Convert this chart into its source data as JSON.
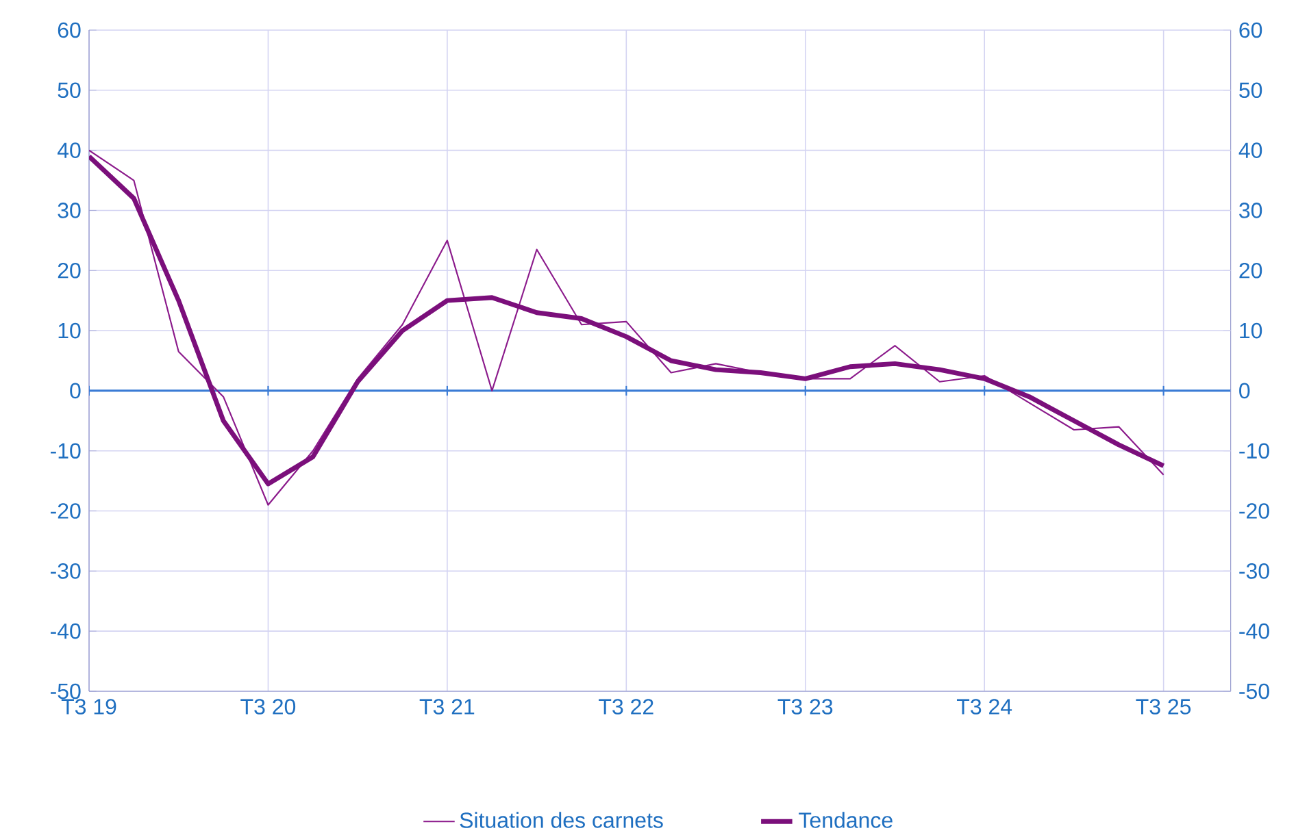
{
  "chart_data": {
    "type": "line",
    "categories": [
      "T3 19",
      null,
      null,
      null,
      "T3 20",
      null,
      null,
      null,
      "T3 21",
      null,
      null,
      null,
      "T3 22",
      null,
      null,
      null,
      "T3 23",
      null,
      null,
      null,
      "T3 24",
      null,
      null,
      null,
      "T3 25"
    ],
    "series": [
      {
        "name": "Situation des carnets",
        "color": "#8b1a8b",
        "values": [
          40,
          35,
          6.5,
          -1,
          -19,
          -10,
          2,
          11,
          25,
          0,
          23.5,
          11,
          11.5,
          3,
          4.5,
          3,
          2,
          2,
          7.5,
          1.5,
          2.5,
          -2,
          -6.5,
          -6,
          -14
        ]
      },
      {
        "name": "Tendance",
        "color": "#7b0f7b",
        "values": [
          39,
          32,
          15,
          -5,
          -15.5,
          -11,
          1.5,
          10,
          15,
          15.5,
          13,
          12,
          9,
          5,
          3.5,
          3,
          2,
          4,
          4.5,
          3.5,
          2,
          -1,
          -5,
          -9,
          -12.5
        ]
      }
    ],
    "ylim": [
      -50,
      60
    ],
    "yticks": [
      -50,
      -40,
      -30,
      -20,
      -10,
      0,
      10,
      20,
      30,
      40,
      50,
      60
    ],
    "y2lim": [
      -50,
      60
    ],
    "y2ticks": [
      -50,
      -40,
      -30,
      -20,
      -10,
      0,
      10,
      20,
      30,
      40,
      50,
      60
    ],
    "ref_lines": [
      {
        "axis": "y",
        "value": 0,
        "color": "#3a7bd5"
      }
    ],
    "grid": true,
    "legend": "bottom",
    "marker": "none",
    "line_style": "solid"
  }
}
